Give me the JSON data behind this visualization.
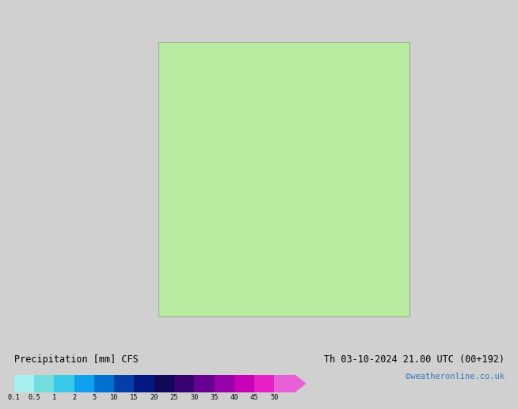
{
  "title_left": "Precipitation [mm] CFS",
  "title_right": "Th 03-10-2024 21.00 UTC (00+192)",
  "credit": "©weatheronline.co.uk",
  "colorbar_colors": [
    "#a8f0f0",
    "#70dede",
    "#38c8e8",
    "#10a0f0",
    "#0070d0",
    "#0040a8",
    "#001880",
    "#100858",
    "#380070",
    "#680090",
    "#9800a8",
    "#c800b8",
    "#e820c8",
    "#e860d8"
  ],
  "colorbar_labels": [
    "0.1",
    "0.5",
    "1",
    "2",
    "5",
    "10",
    "15",
    "20",
    "25",
    "30",
    "35",
    "40",
    "45",
    "50"
  ],
  "land_color": "#b8eaa0",
  "ocean_color": "#d0d0d0",
  "border_color": "#909090",
  "lake_color": "#d0d0d0",
  "map_lon_min": -25,
  "map_lon_max": 45,
  "map_lat_min": 30,
  "map_lat_max": 72,
  "title_fontsize": 8.5,
  "credit_fontsize": 7.5,
  "credit_color": "#3377bb",
  "bottom_bg": "#ffffff"
}
